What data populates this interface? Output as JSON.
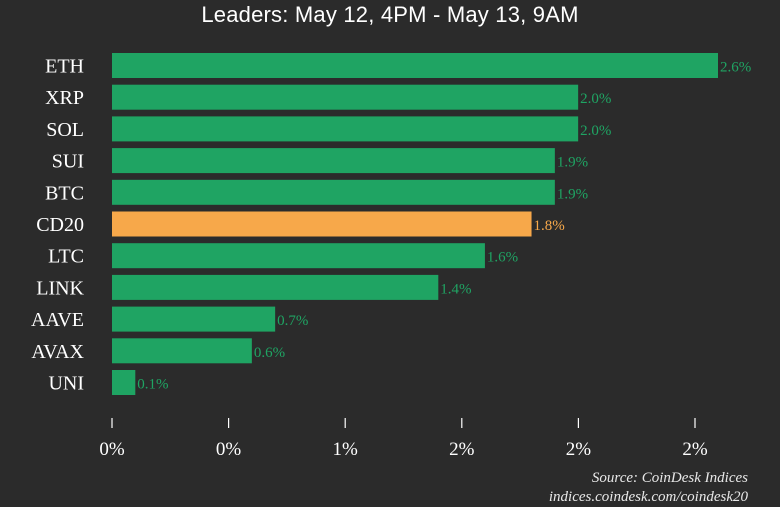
{
  "chart_data": {
    "type": "bar",
    "orientation": "horizontal",
    "title": "Leaders: May 12, 4PM - May 13, 9AM",
    "categories": [
      "ETH",
      "XRP",
      "SOL",
      "SUI",
      "BTC",
      "CD20",
      "LTC",
      "LINK",
      "AAVE",
      "AVAX",
      "UNI"
    ],
    "values": [
      2.6,
      2.0,
      2.0,
      1.9,
      1.9,
      1.8,
      1.6,
      1.4,
      0.7,
      0.6,
      0.1
    ],
    "value_labels": [
      "2.6%",
      "2.0%",
      "2.0%",
      "1.9%",
      "1.9%",
      "1.8%",
      "1.6%",
      "1.4%",
      "0.7%",
      "0.6%",
      "0.1%"
    ],
    "highlight_category": "CD20",
    "tick_labels": [
      "0%",
      "0%",
      "1%",
      "2%",
      "2%",
      "2%"
    ],
    "xlim": [
      0,
      2.6
    ],
    "grid": false,
    "colors": {
      "background": "#2b2b2b",
      "bar": "#1fa463",
      "highlight": "#f7a84a",
      "value_label": "#1fa463",
      "highlight_label": "#f7a84a",
      "text": "#ffffff"
    }
  },
  "footer": {
    "source": "Source: CoinDesk Indices",
    "url": "indices.coindesk.com/coindesk20"
  }
}
